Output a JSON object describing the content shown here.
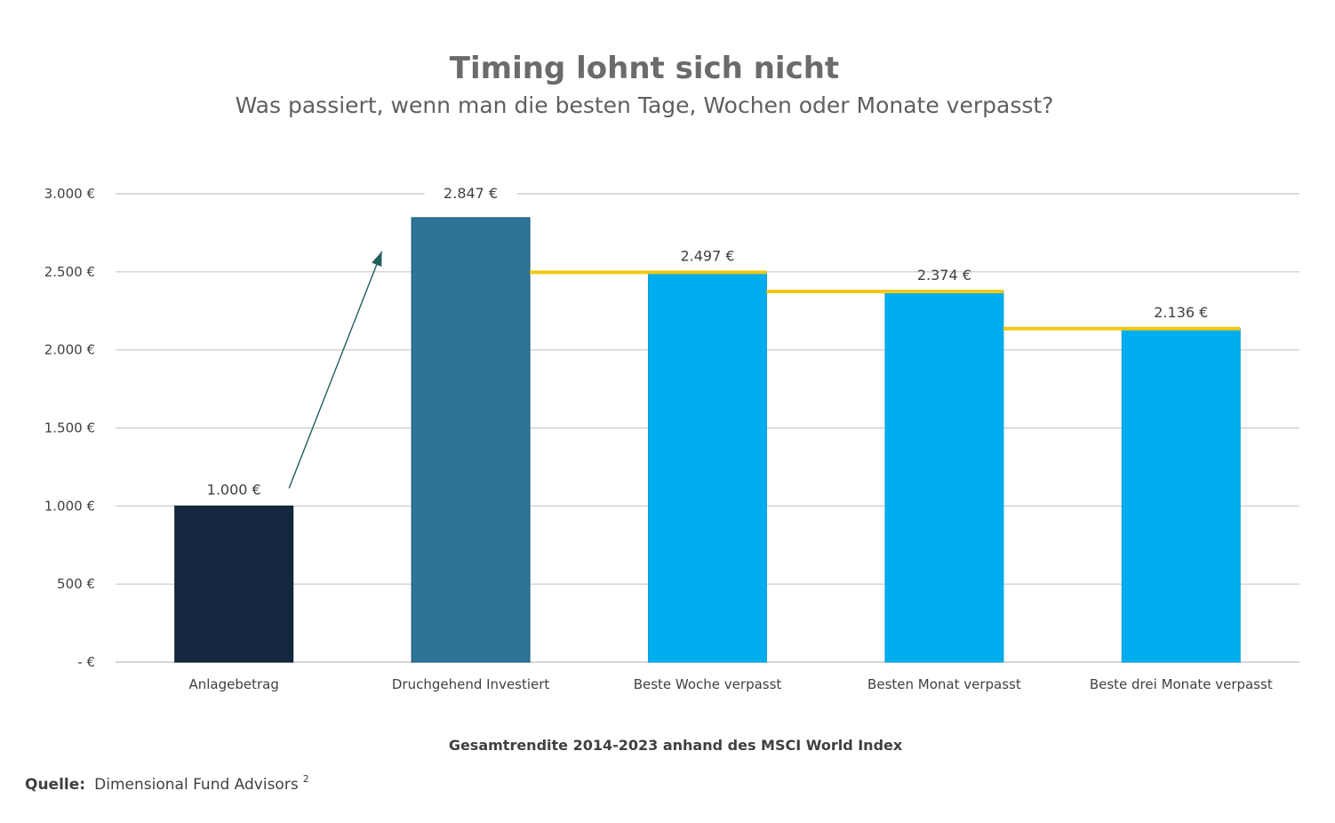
{
  "chart_data": {
    "type": "bar",
    "title": "Timing lohnt sich nicht",
    "subtitle": "Was passiert, wenn man die besten Tage, Wochen oder Monate verpasst?",
    "xlabel": "Gesamtrendite 2014-2023 anhand des MSCI World Index",
    "ylabel": "",
    "ylim": [
      0,
      3000
    ],
    "yticks": [
      0,
      500,
      1000,
      1500,
      2000,
      2500,
      3000
    ],
    "ytick_labels": [
      "-   €",
      "500 €",
      "1.000 €",
      "1.500 €",
      "2.000 €",
      "2.500 €",
      "3.000 €"
    ],
    "grid": true,
    "categories": [
      "Anlagebetrag",
      "Druchgehend Investiert",
      "Beste Woche verpasst",
      "Besten Monat verpasst",
      "Beste drei Monate verpasst"
    ],
    "values": [
      1000,
      2847,
      2497,
      2374,
      2136
    ],
    "data_labels": [
      "1.000 €",
      "2.847 €",
      "2.497 €",
      "2.374 €",
      "2.136 €"
    ],
    "bar_colors": [
      "#13283f",
      "#2c7599",
      "#00aeef",
      "#00aeef",
      "#00aeef"
    ],
    "step_line_color": "#f2c811",
    "arrow_color": "#1f5f5a",
    "grid_color": "#c8c8c8"
  },
  "source": {
    "label": "Quelle:",
    "text": "Dimensional Fund Advisors",
    "superscript": "2"
  }
}
